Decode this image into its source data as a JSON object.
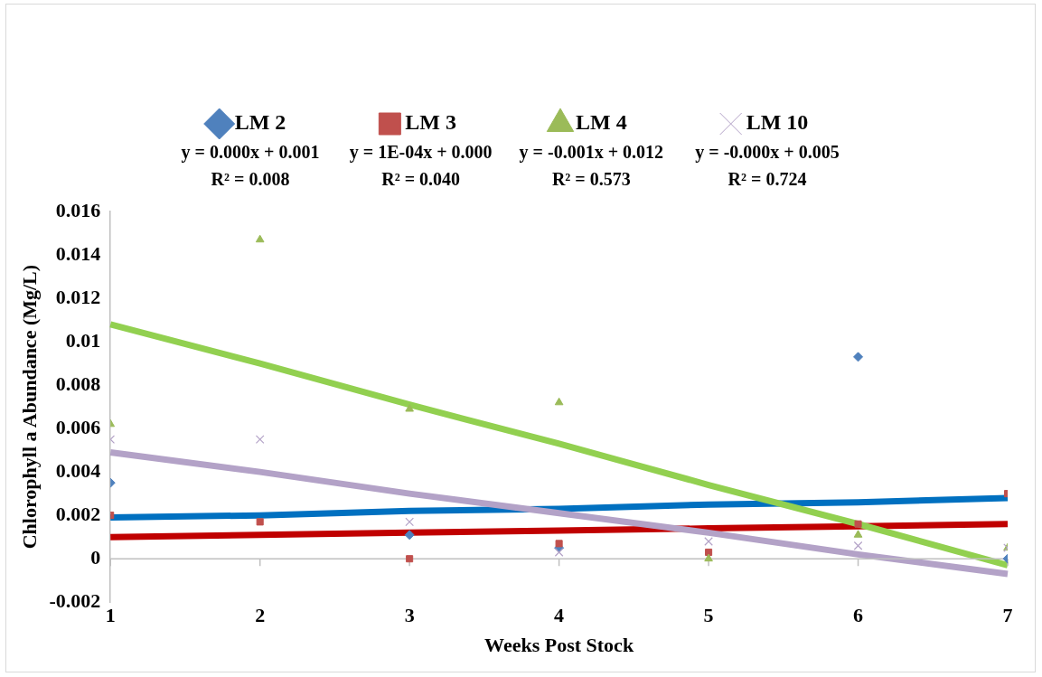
{
  "chart_data": {
    "type": "scatter",
    "xlabel": "Weeks Post Stock",
    "ylabel": "Chlorophyll a Abundance (Mg/L)",
    "x": [
      1,
      2,
      3,
      4,
      5,
      6,
      7
    ],
    "series": [
      {
        "name": "LM 2",
        "color": "#4f81bd",
        "marker": "diamond",
        "values": [
          0.0035,
          null,
          0.0011,
          0.0005,
          null,
          0.0093,
          0
        ]
      },
      {
        "name": "LM 3",
        "color": "#c0504d",
        "marker": "square",
        "values": [
          0.002,
          0.0017,
          0,
          0.0007,
          0.0003,
          0.0016,
          0.003
        ]
      },
      {
        "name": "LM 4",
        "color": "#9bbb59",
        "marker": "triangle",
        "values": [
          0.0062,
          0.0147,
          0.0069,
          0.0072,
          0,
          0.0011,
          0.0005
        ]
      },
      {
        "name": "LM 10",
        "color": "#b3a2c7",
        "marker": "cross",
        "values": [
          0.0055,
          0.0055,
          0.0017,
          0.0003,
          0.0008,
          0.0006,
          0.0005
        ]
      },
      {
        "type": "line",
        "color": "#0070c0",
        "marker": "none",
        "line_style": "solid",
        "values": [
          0.0019,
          0.002,
          0.0022,
          0.0023,
          0.0025,
          0.0026,
          0.0028
        ]
      },
      {
        "type": "line",
        "color": "#c00000",
        "marker": "none",
        "line_style": "solid",
        "values": [
          0.001,
          0.0011,
          0.0012,
          0.0013,
          0.0014,
          0.0015,
          0.0016
        ]
      },
      {
        "type": "line",
        "color": "#92d050",
        "marker": "none",
        "line_style": "solid",
        "values": [
          0.0108,
          0.009,
          0.0071,
          0.0053,
          0.0034,
          0.0016,
          -0.0003
        ]
      },
      {
        "type": "line",
        "color": "#b3a2c7",
        "marker": "none",
        "line_style": "solid",
        "values": [
          0.0049,
          0.004,
          0.003,
          0.0021,
          0.0012,
          0.0002,
          -0.0007
        ]
      }
    ],
    "annotations": [
      "y = 0.000x + 0.001\nR² = 0.008",
      "y = 1E-04x + 0.000\nR² = 0.040",
      "y = -0.001x + 0.012\nR² = 0.573",
      "y = -0.000x + 0.005\nR² = 0.724"
    ],
    "xlim": [
      1,
      7
    ],
    "xticks": [
      1,
      2,
      3,
      4,
      5,
      6,
      7
    ],
    "ylim": [
      -0.002,
      0.016
    ],
    "yticks": [
      -0.002,
      0,
      0.002,
      0.004,
      0.006,
      0.008,
      0.01,
      0.012,
      0.014,
      0.016
    ],
    "grid": false,
    "legend": "top"
  }
}
